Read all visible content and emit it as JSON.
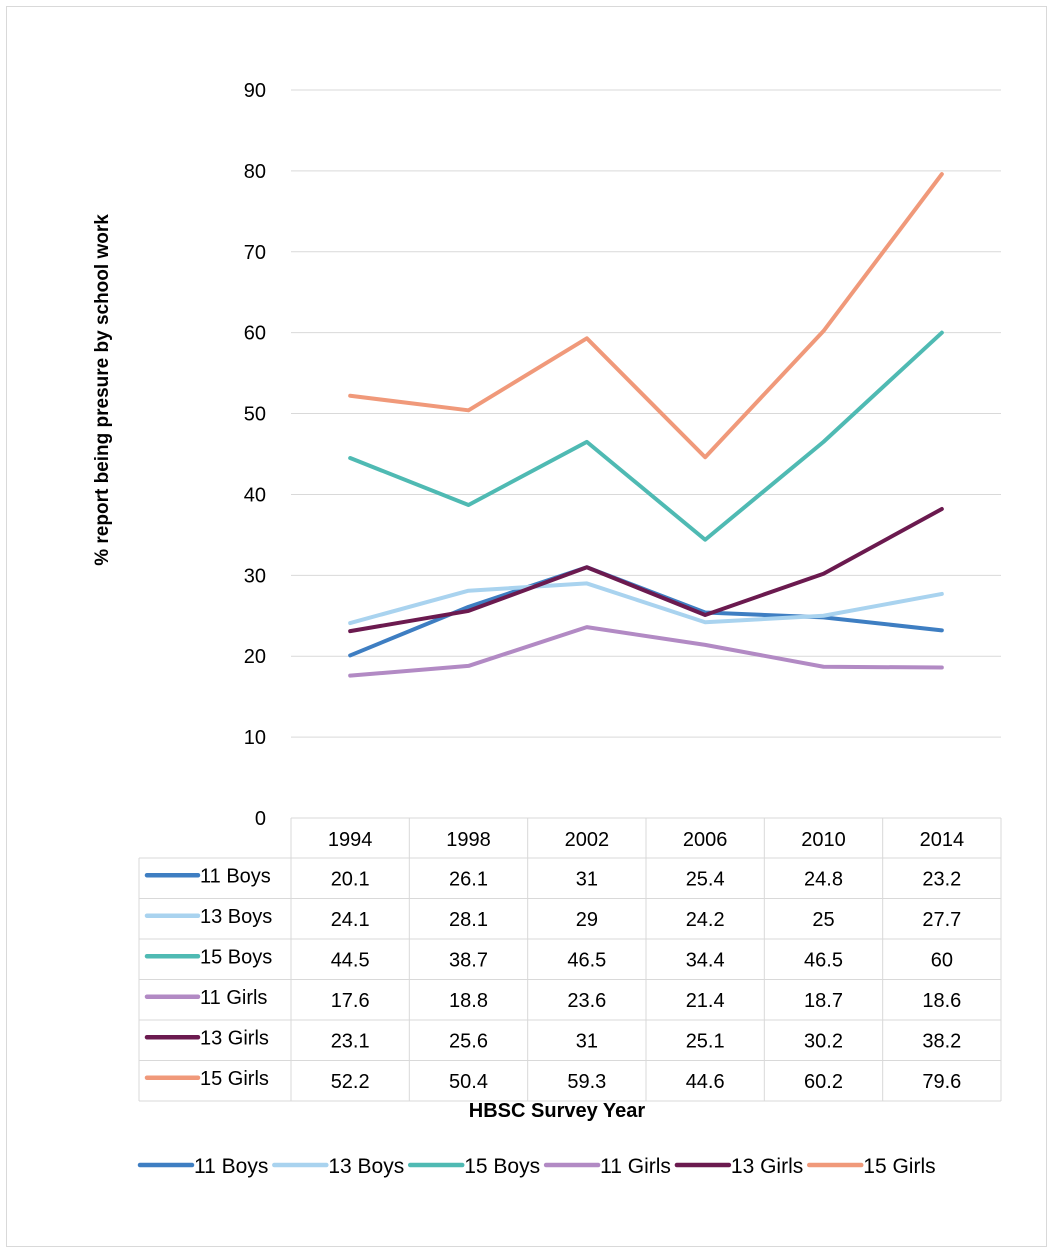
{
  "chart_data": {
    "type": "line",
    "title": "",
    "xlabel": "HBSC Survey Year",
    "ylabel": "%  report being  presure by school work",
    "ylim": [
      0,
      90
    ],
    "yticks": [
      "0",
      "10",
      "20",
      "30",
      "40",
      "50",
      "60",
      "70",
      "80",
      "90"
    ],
    "categories": [
      "1994",
      "1998",
      "2002",
      "2006",
      "2010",
      "2014"
    ],
    "grid": true,
    "legend": "bottom",
    "data_table": true,
    "series": [
      {
        "name": "11 Boys",
        "color": "#3e7ec2",
        "values": [
          20.1,
          26.1,
          31,
          25.4,
          24.8,
          23.2
        ],
        "labels": [
          "20.1",
          "26.1",
          "31",
          "25.4",
          "24.8",
          "23.2"
        ]
      },
      {
        "name": "13 Boys",
        "color": "#a9d3ef",
        "values": [
          24.1,
          28.1,
          29,
          24.2,
          25,
          27.7
        ],
        "labels": [
          "24.1",
          "28.1",
          "29",
          "24.2",
          "25",
          "27.7"
        ]
      },
      {
        "name": "15 Boys",
        "color": "#4fbab3",
        "values": [
          44.5,
          38.7,
          46.5,
          34.4,
          46.5,
          60
        ],
        "labels": [
          "44.5",
          "38.7",
          "46.5",
          "34.4",
          "46.5",
          "60"
        ]
      },
      {
        "name": "11 Girls",
        "color": "#b28ac4",
        "values": [
          17.6,
          18.8,
          23.6,
          21.4,
          18.7,
          18.6
        ],
        "labels": [
          "17.6",
          "18.8",
          "23.6",
          "21.4",
          "18.7",
          "18.6"
        ]
      },
      {
        "name": "13 Girls",
        "color": "#6b1a4f",
        "values": [
          23.1,
          25.6,
          31,
          25.1,
          30.2,
          38.2
        ],
        "labels": [
          "23.1",
          "25.6",
          "31",
          "25.1",
          "30.2",
          "38.2"
        ]
      },
      {
        "name": "15 Girls",
        "color": "#f0997a",
        "values": [
          52.2,
          50.4,
          59.3,
          44.6,
          60.2,
          79.6
        ],
        "labels": [
          "52.2",
          "50.4",
          "59.3",
          "44.6",
          "60.2",
          "79.6"
        ]
      }
    ]
  }
}
